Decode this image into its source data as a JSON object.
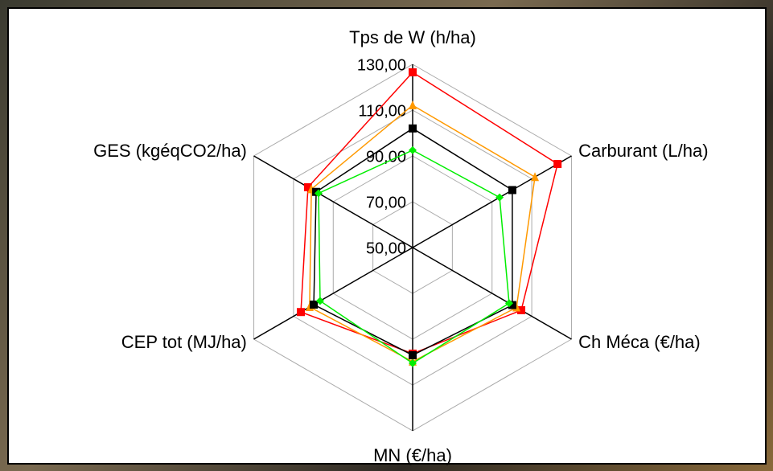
{
  "chart_data": {
    "type": "radar",
    "categories": [
      "Tps de W  (h/ha)",
      "Carburant (L/ha)",
      "Ch Méca (€/ha)",
      "MN (€/ha)",
      "CEP tot (MJ/ha)",
      "GES (kgéqCO2/ha)"
    ],
    "rlim": [
      50,
      130
    ],
    "rticks": [
      {
        "value": 50,
        "label": "50,00"
      },
      {
        "value": 70,
        "label": "70,00"
      },
      {
        "value": 90,
        "label": "90,00"
      },
      {
        "value": 110,
        "label": "110,00"
      },
      {
        "value": 130,
        "label": "130,00"
      }
    ],
    "grid": true,
    "series": [
      {
        "color": "#ff0000",
        "marker": "square",
        "values": [
          126.5,
          123,
          104.7,
          96.3,
          106.3,
          102.7
        ]
      },
      {
        "color": "#ff9900",
        "marker": "triangle",
        "values": [
          112.1,
          111.6,
          102.3,
          99.8,
          101.9,
          101
        ]
      },
      {
        "color": "#000000",
        "marker": "square",
        "values": [
          102,
          100.2,
          100.2,
          97,
          99.8,
          98.6
        ]
      },
      {
        "color": "#00ee00",
        "marker": "diamond",
        "values": [
          92.5,
          93.8,
          98.6,
          100.5,
          96.6,
          97.4
        ]
      }
    ]
  }
}
